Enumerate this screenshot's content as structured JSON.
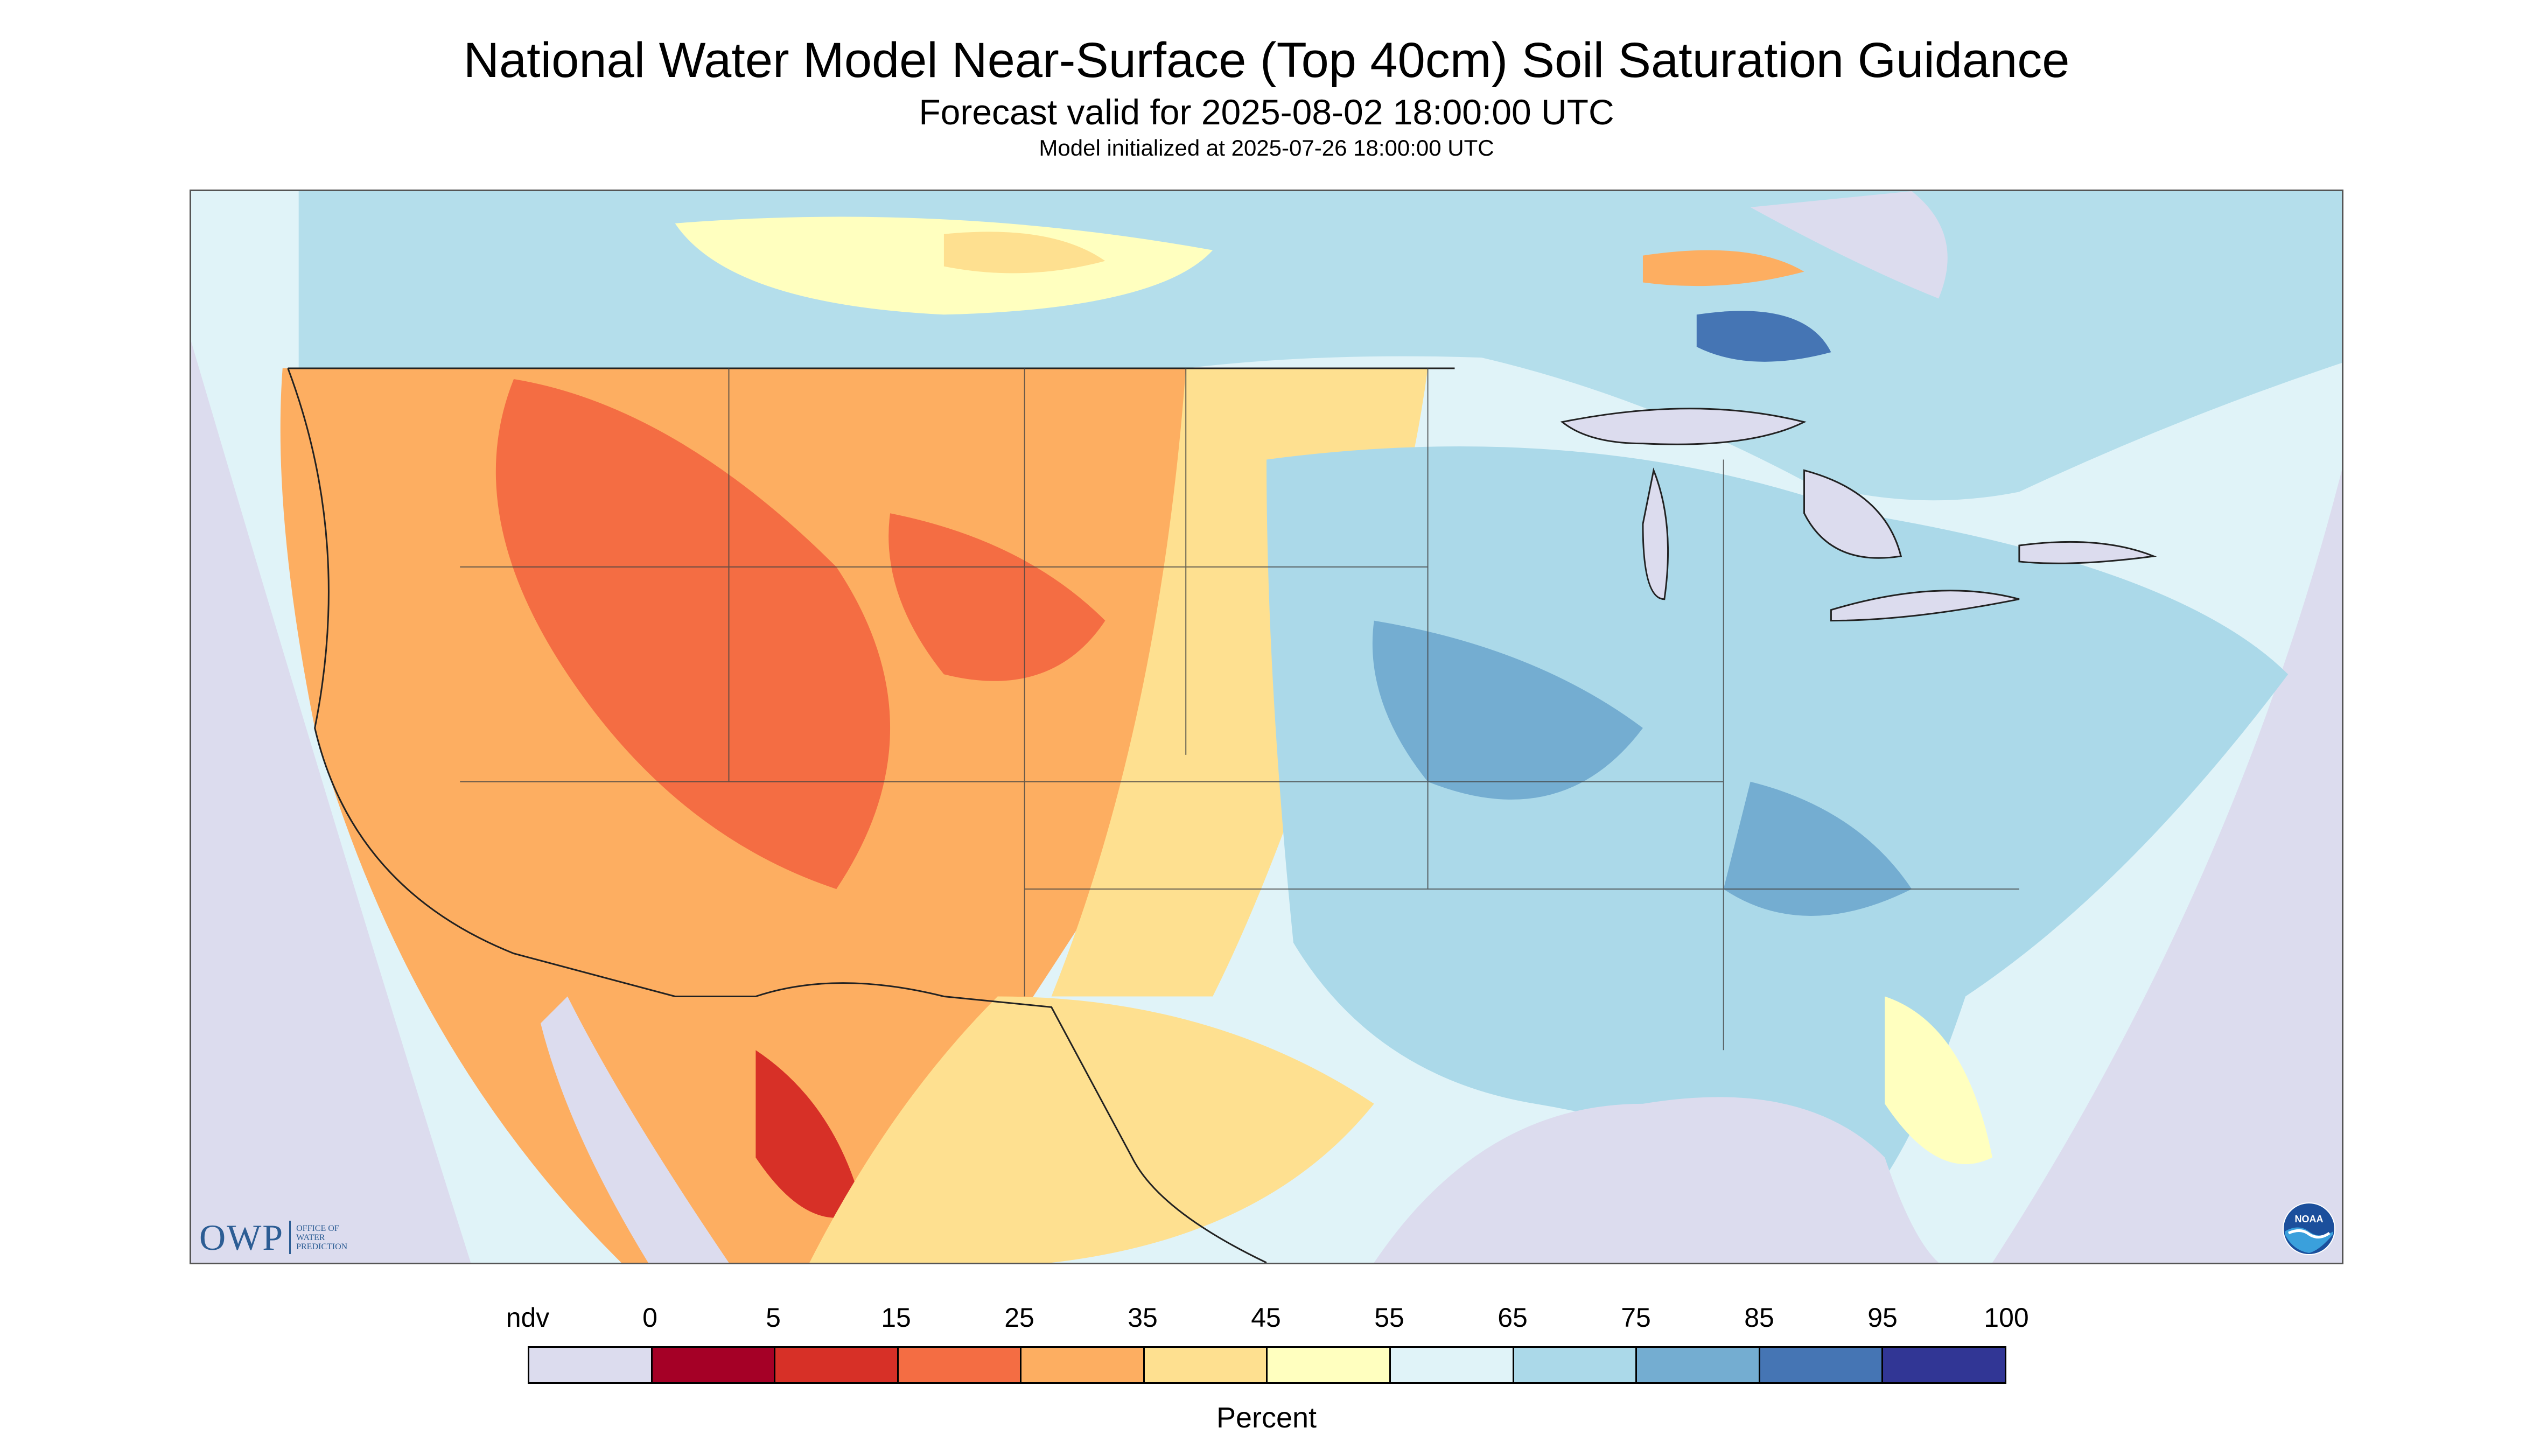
{
  "header": {
    "title": "National Water Model Near-Surface (Top 40cm) Soil Saturation Guidance",
    "subtitle": "Forecast valid for 2025-08-02 18:00:00 UTC",
    "init_line": "Model initialized at 2025-07-26 18:00:00 UTC"
  },
  "logos": {
    "owp_text": "OWP",
    "owp_subtitle_lines": [
      "OFFICE OF",
      "WATER",
      "PREDICTION"
    ],
    "noaa_text": "NOAA"
  },
  "colors": {
    "ndv": "#dcdcee",
    "map_outside": "#dcdcee",
    "water_bodies": "#dcdcee",
    "boundary_lines": "#333333"
  },
  "legend": {
    "label": "Percent",
    "tick_labels": [
      "ndv",
      "0",
      "5",
      "15",
      "25",
      "35",
      "45",
      "55",
      "65",
      "75",
      "85",
      "95",
      "100"
    ],
    "bins": [
      {
        "label": "ndv",
        "color": "#dcdcee"
      },
      {
        "range": "0-5",
        "color": "#a50026"
      },
      {
        "range": "5-15",
        "color": "#d73027"
      },
      {
        "range": "15-25",
        "color": "#f46d43"
      },
      {
        "range": "25-35",
        "color": "#fdae61"
      },
      {
        "range": "35-45",
        "color": "#fee090"
      },
      {
        "range": "45-55",
        "color": "#ffffbf"
      },
      {
        "range": "55-65",
        "color": "#e0f3f8"
      },
      {
        "range": "65-75",
        "color": "#abd9e9"
      },
      {
        "range": "75-85",
        "color": "#74add1"
      },
      {
        "range": "85-95",
        "color": "#4575b4"
      },
      {
        "range": "95-100",
        "color": "#313695"
      }
    ]
  }
}
